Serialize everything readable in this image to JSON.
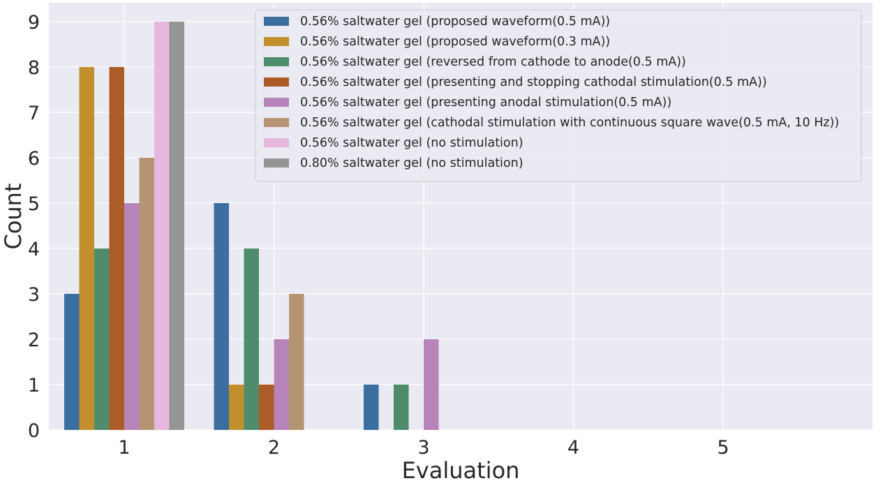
{
  "chart_data": {
    "type": "bar",
    "title": "",
    "xlabel": "Evaluation",
    "ylabel": "Count",
    "categories": [
      "1",
      "2",
      "3",
      "4",
      "5"
    ],
    "yticks": [
      "0",
      "1",
      "2",
      "3",
      "4",
      "5",
      "6",
      "7",
      "8",
      "9"
    ],
    "ylim": [
      0,
      9.4
    ],
    "grid": true,
    "legend_position": "top-right",
    "series": [
      {
        "name": "0.56% saltwater gel (proposed waveform(0.5 mA))",
        "color": "#3c6e9f",
        "values": [
          3,
          5,
          1,
          0,
          0
        ]
      },
      {
        "name": "0.56% saltwater gel (proposed waveform(0.3 mA))",
        "color": "#c18f2d",
        "values": [
          8,
          1,
          0,
          0,
          0
        ]
      },
      {
        "name": "0.56% saltwater gel (reversed from cathode to anode(0.5 mA))",
        "color": "#4f8c6c",
        "values": [
          4,
          4,
          1,
          0,
          0
        ]
      },
      {
        "name": "0.56% saltwater gel (presenting and stopping cathodal stimulation(0.5 mA))",
        "color": "#ac5c27",
        "values": [
          8,
          1,
          0,
          0,
          0
        ]
      },
      {
        "name": "0.56% saltwater gel (presenting anodal stimulation(0.5 mA))",
        "color": "#b684b9",
        "values": [
          5,
          2,
          2,
          0,
          0
        ]
      },
      {
        "name": "0.56% saltwater gel (cathodal stimulation with continuous square wave(0.5 mA, 10 Hz))",
        "color": "#b59474",
        "values": [
          6,
          3,
          0,
          0,
          0
        ]
      },
      {
        "name": "0.56% saltwater gel (no stimulation)",
        "color": "#e6b8dd",
        "values": [
          9,
          0,
          0,
          0,
          0
        ]
      },
      {
        "name": "0.80% saltwater gel (no stimulation)",
        "color": "#959595",
        "values": [
          9,
          0,
          0,
          0,
          0
        ]
      }
    ]
  },
  "colors": {
    "plot_background": "#eaeaf2",
    "grid": "#ffffff",
    "legend_background": "#eaeaf2",
    "legend_border": "#cccccc"
  }
}
